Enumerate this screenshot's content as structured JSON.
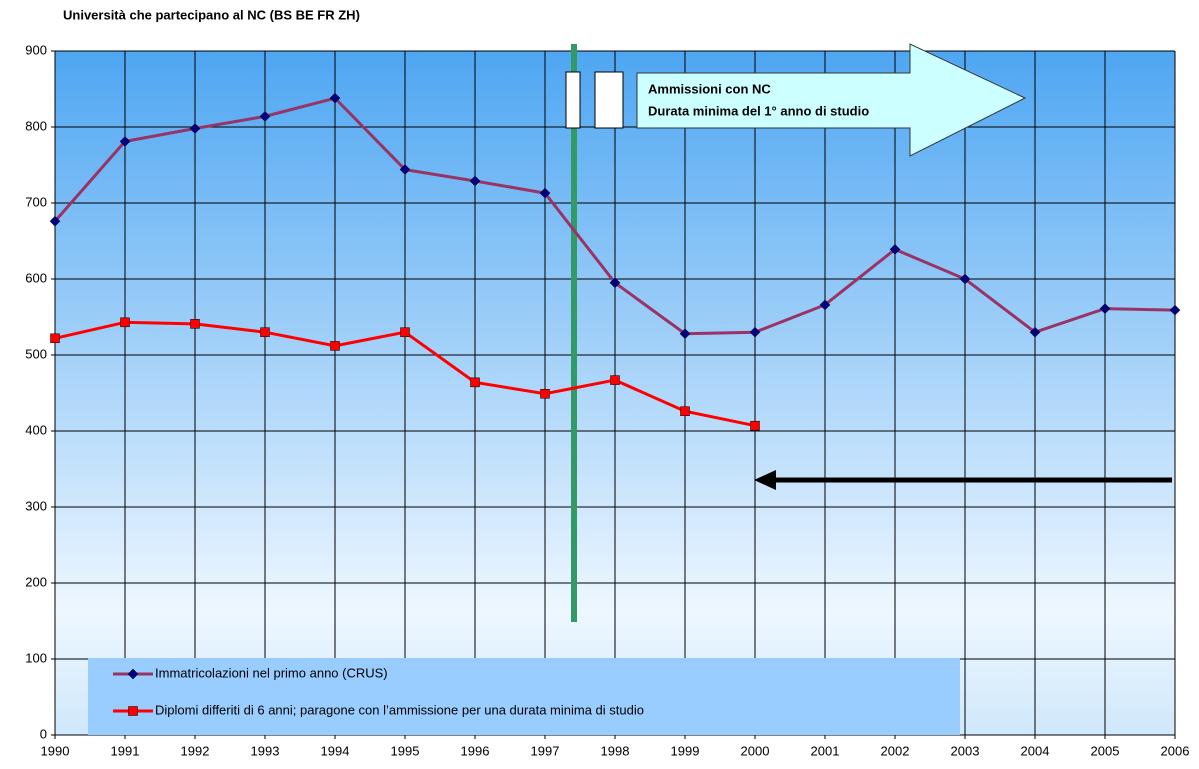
{
  "chart_data": {
    "type": "line",
    "title": "Università che partecipano al NC (BS BE FR ZH)",
    "annotations": [
      "Ammissioni con NC",
      "Durata minima del 1° anno di studio"
    ],
    "x": [
      1990,
      1991,
      1992,
      1993,
      1994,
      1995,
      1996,
      1997,
      1998,
      1999,
      2000,
      2001,
      2002,
      2003,
      2004,
      2005,
      2006
    ],
    "xlim": [
      1990,
      2006
    ],
    "xticks": [
      1990,
      1991,
      1992,
      1993,
      1994,
      1995,
      1996,
      1997,
      1998,
      1999,
      2000,
      2001,
      2002,
      2003,
      2004,
      2005,
      2006
    ],
    "ylim": [
      0,
      900
    ],
    "yticks": [
      0,
      100,
      200,
      300,
      400,
      500,
      600,
      700,
      800,
      900
    ],
    "grid": true,
    "series": [
      {
        "name": "Immatricolazioni nel primo anno (CRUS)",
        "color": "#993366",
        "marker": "diamond",
        "marker_color": "#000080",
        "values": [
          676,
          781,
          798,
          814,
          838,
          744,
          729,
          713,
          595,
          528,
          530,
          566,
          639,
          600,
          530,
          561,
          559
        ]
      },
      {
        "name": "Diplomi differiti di 6 anni; paragone con l’ammissione per una durata minima di studio",
        "color": "#ff0000",
        "marker": "square",
        "marker_color": "#ff0000",
        "values": [
          522,
          543,
          541,
          530,
          512,
          530,
          464,
          449,
          467,
          426,
          407,
          null,
          null,
          null,
          null,
          null,
          null
        ]
      }
    ]
  }
}
